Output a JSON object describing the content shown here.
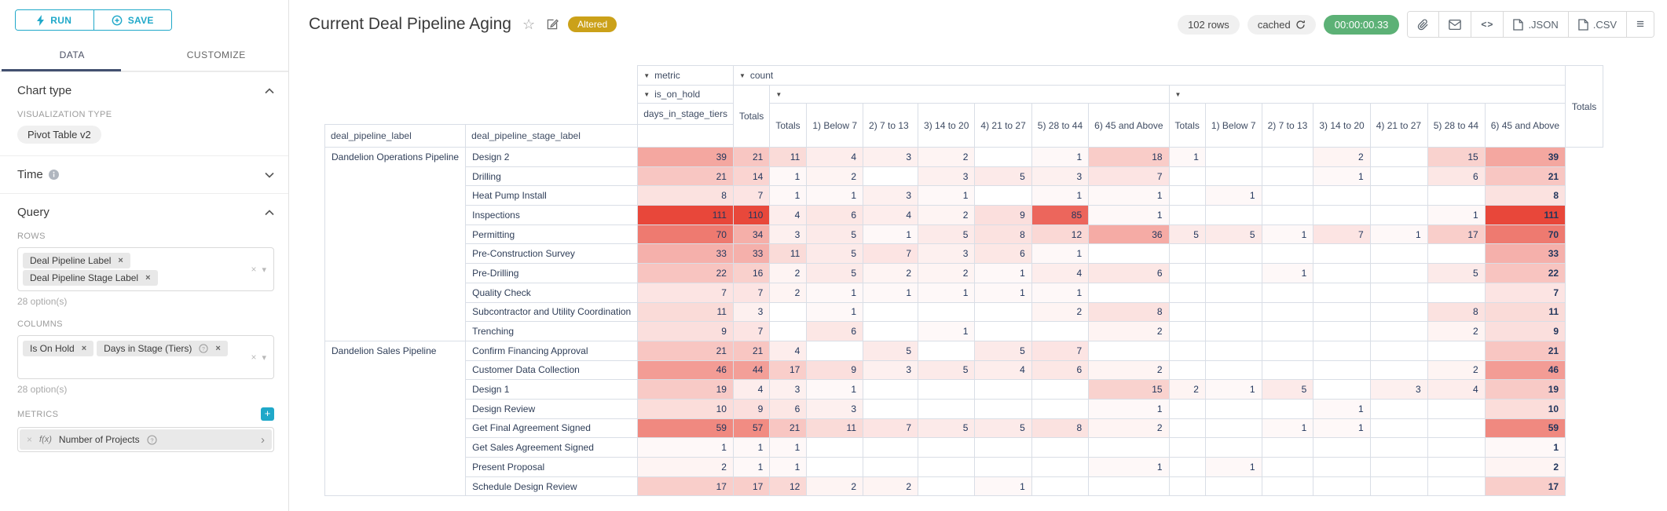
{
  "left_panel": {
    "run_label": "RUN",
    "save_label": "SAVE",
    "tabs": {
      "data": "DATA",
      "customize": "CUSTOMIZE"
    },
    "chart_type": {
      "title": "Chart type",
      "viz_type_label": "VISUALIZATION TYPE",
      "viz_type_value": "Pivot Table v2"
    },
    "time": {
      "title": "Time"
    },
    "query": {
      "title": "Query",
      "rows_label": "ROWS",
      "rows": [
        {
          "label": "Deal Pipeline Label",
          "help": false
        },
        {
          "label": "Deal Pipeline Stage Label",
          "help": false
        }
      ],
      "rows_options_hint": "28 option(s)",
      "columns_label": "COLUMNS",
      "columns": [
        {
          "label": "Is On Hold",
          "help": false
        },
        {
          "label": "Days in Stage (Tiers)",
          "help": true
        }
      ],
      "columns_options_hint": "28 option(s)",
      "metrics_label": "METRICS",
      "metric": {
        "fn": "f(x)",
        "label": "Number of Projects",
        "help": true
      }
    }
  },
  "header": {
    "title": "Current Deal Pipeline Aging",
    "altered_badge": "Altered",
    "row_count": "102 rows",
    "cached_label": "cached",
    "timer": "00:00:00.33",
    "export_json_label": ".JSON",
    "export_csv_label": ".CSV"
  },
  "icons": {
    "sort": "▼",
    "caret_down": "▾",
    "remove_x": "×",
    "star": "☆",
    "menu": "≡",
    "code": "<>",
    "chevron_right": "›"
  },
  "colors": {
    "accent_teal": "#1fa8c9",
    "heat_base": "#e8473a",
    "altered_gold": "#cba119",
    "timer_green": "#5cb176"
  },
  "chart_data": {
    "type": "table",
    "title": "Current Deal Pipeline Aging",
    "metric_header": "metric",
    "metric_value": "count",
    "col_level_1": "is_on_hold",
    "col_level_2": "days_in_stage_tiers",
    "row_level_1": "deal_pipeline_label",
    "row_level_2": "deal_pipeline_stage_label",
    "totals_label": "Totals",
    "tier_labels": [
      "Totals",
      "1) Below 7",
      "2) 7 to 13",
      "3) 14 to 20",
      "4) 21 to 27",
      "5) 28 to 44",
      "6) 45 and Above"
    ],
    "heat_max": 111,
    "groups": [
      {
        "label": "Dandelion Operations Pipeline",
        "rows": [
          {
            "stage": "Design 2",
            "left_total": 39,
            "g1": [
              21,
              11,
              4,
              3,
              2,
              null,
              1
            ],
            "g2": [
              18,
              1,
              null,
              null,
              2,
              null,
              15
            ],
            "total": 39
          },
          {
            "stage": "Drilling",
            "left_total": 21,
            "g1": [
              14,
              1,
              2,
              null,
              3,
              5,
              3
            ],
            "g2": [
              7,
              null,
              null,
              null,
              1,
              null,
              6
            ],
            "total": 21
          },
          {
            "stage": "Heat Pump Install",
            "left_total": 8,
            "g1": [
              7,
              1,
              1,
              3,
              1,
              null,
              1
            ],
            "g2": [
              1,
              null,
              1,
              null,
              null,
              null,
              null
            ],
            "total": 8
          },
          {
            "stage": "Inspections",
            "left_total": 111,
            "g1": [
              110,
              4,
              6,
              4,
              2,
              9,
              85
            ],
            "g2": [
              1,
              null,
              null,
              null,
              null,
              null,
              1
            ],
            "total": 111
          },
          {
            "stage": "Permitting",
            "left_total": 70,
            "g1": [
              34,
              3,
              5,
              1,
              5,
              8,
              12
            ],
            "g2": [
              36,
              5,
              5,
              1,
              7,
              1,
              17
            ],
            "total": 70
          },
          {
            "stage": "Pre-Construction Survey",
            "left_total": 33,
            "g1": [
              33,
              11,
              5,
              7,
              3,
              6,
              1
            ],
            "g2": [
              null,
              null,
              null,
              null,
              null,
              null,
              null
            ],
            "total": 33
          },
          {
            "stage": "Pre-Drilling",
            "left_total": 22,
            "g1": [
              16,
              2,
              5,
              2,
              2,
              1,
              4
            ],
            "g2": [
              6,
              null,
              null,
              1,
              null,
              null,
              5
            ],
            "total": 22
          },
          {
            "stage": "Quality Check",
            "left_total": 7,
            "g1": [
              7,
              2,
              1,
              1,
              1,
              1,
              1
            ],
            "g2": [
              null,
              null,
              null,
              null,
              null,
              null,
              null
            ],
            "total": 7
          },
          {
            "stage": "Subcontractor and Utility Coordination",
            "left_total": 11,
            "g1": [
              3,
              null,
              1,
              null,
              null,
              null,
              2
            ],
            "g2": [
              8,
              null,
              null,
              null,
              null,
              null,
              8
            ],
            "total": 11
          },
          {
            "stage": "Trenching",
            "left_total": 9,
            "g1": [
              7,
              null,
              6,
              null,
              1,
              null,
              null
            ],
            "g2": [
              2,
              null,
              null,
              null,
              null,
              null,
              2
            ],
            "total": 9
          }
        ]
      },
      {
        "label": "Dandelion Sales Pipeline",
        "rows": [
          {
            "stage": "Confirm Financing Approval",
            "left_total": 21,
            "g1": [
              21,
              4,
              null,
              5,
              null,
              5,
              7
            ],
            "g2": [
              null,
              null,
              null,
              null,
              null,
              null,
              null
            ],
            "total": 21
          },
          {
            "stage": "Customer Data Collection",
            "left_total": 46,
            "g1": [
              44,
              17,
              9,
              3,
              5,
              4,
              6
            ],
            "g2": [
              2,
              null,
              null,
              null,
              null,
              null,
              2
            ],
            "total": 46
          },
          {
            "stage": "Design 1",
            "left_total": 19,
            "g1": [
              4,
              3,
              1,
              null,
              null,
              null,
              null
            ],
            "g2": [
              15,
              2,
              1,
              5,
              null,
              3,
              4
            ],
            "total": 19
          },
          {
            "stage": "Design Review",
            "left_total": 10,
            "g1": [
              9,
              6,
              3,
              null,
              null,
              null,
              null
            ],
            "g2": [
              1,
              null,
              null,
              null,
              1,
              null,
              null
            ],
            "total": 10
          },
          {
            "stage": "Get Final Agreement Signed",
            "left_total": 59,
            "g1": [
              57,
              21,
              11,
              7,
              5,
              5,
              8
            ],
            "g2": [
              2,
              null,
              null,
              1,
              1,
              null,
              null
            ],
            "total": 59
          },
          {
            "stage": "Get Sales Agreement Signed",
            "left_total": 1,
            "g1": [
              1,
              1,
              null,
              null,
              null,
              null,
              null
            ],
            "g2": [
              null,
              null,
              null,
              null,
              null,
              null,
              null
            ],
            "total": 1
          },
          {
            "stage": "Present Proposal",
            "left_total": 2,
            "g1": [
              1,
              1,
              null,
              null,
              null,
              null,
              null
            ],
            "g2": [
              1,
              null,
              1,
              null,
              null,
              null,
              null
            ],
            "total": 2
          },
          {
            "stage": "Schedule Design Review",
            "left_total": 17,
            "g1": [
              17,
              12,
              2,
              2,
              null,
              1,
              null
            ],
            "g2": [
              null,
              null,
              null,
              null,
              null,
              null,
              null
            ],
            "total": 17
          }
        ]
      }
    ]
  }
}
